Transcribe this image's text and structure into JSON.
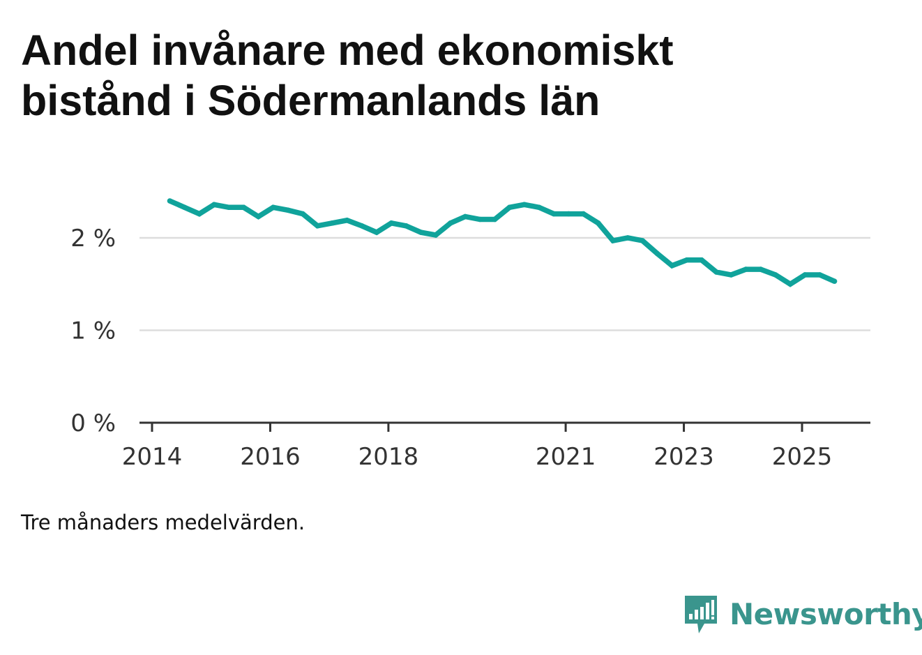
{
  "title": "Andel invånare med ekonomiskt bistånd i Södermanlands län",
  "note": "Tre månaders medelvärden.",
  "brand": {
    "name": "Newsworthy",
    "logo_icon": "bar-chart-speech-bubble-icon",
    "color": "#3a958d"
  },
  "colors": {
    "line": "#10a39b",
    "grid": "#dddddd",
    "axis": "#333333"
  },
  "chart_data": {
    "type": "line",
    "title": "Andel invånare med ekonomiskt bistånd i Södermanlands län",
    "xlabel": "",
    "ylabel": "",
    "ylim": [
      0,
      2.6
    ],
    "y_ticks": [
      0,
      1,
      2
    ],
    "y_tick_labels": [
      "0 %",
      "1 %",
      "2 %"
    ],
    "x_ticks": [
      2014,
      2016,
      2018,
      2021,
      2023,
      2025
    ],
    "x_tick_labels": [
      "2014",
      "2016",
      "2018",
      "2021",
      "2023",
      "2025"
    ],
    "grid": true,
    "series": [
      {
        "name": "Andel invånare med ekonomiskt bistånd",
        "x": [
          2014.3,
          2014.55,
          2014.8,
          2015.05,
          2015.3,
          2015.55,
          2015.8,
          2016.05,
          2016.3,
          2016.55,
          2016.8,
          2017.05,
          2017.3,
          2017.55,
          2017.8,
          2018.05,
          2018.3,
          2018.55,
          2018.8,
          2019.05,
          2019.3,
          2019.55,
          2019.8,
          2020.05,
          2020.3,
          2020.55,
          2020.8,
          2021.05,
          2021.3,
          2021.55,
          2021.8,
          2022.05,
          2022.3,
          2022.55,
          2022.8,
          2023.05,
          2023.3,
          2023.55,
          2023.8,
          2024.05,
          2024.3,
          2024.55,
          2024.8,
          2025.05,
          2025.3,
          2025.55
        ],
        "values": [
          2.4,
          2.33,
          2.26,
          2.36,
          2.33,
          2.33,
          2.23,
          2.33,
          2.3,
          2.26,
          2.13,
          2.16,
          2.19,
          2.13,
          2.06,
          2.16,
          2.13,
          2.06,
          2.03,
          2.16,
          2.23,
          2.2,
          2.2,
          2.33,
          2.36,
          2.33,
          2.26,
          2.26,
          2.26,
          2.16,
          1.97,
          2.0,
          1.97,
          1.83,
          1.7,
          1.76,
          1.76,
          1.63,
          1.6,
          1.66,
          1.66,
          1.6,
          1.5,
          1.6,
          1.6,
          1.53
        ]
      }
    ]
  }
}
